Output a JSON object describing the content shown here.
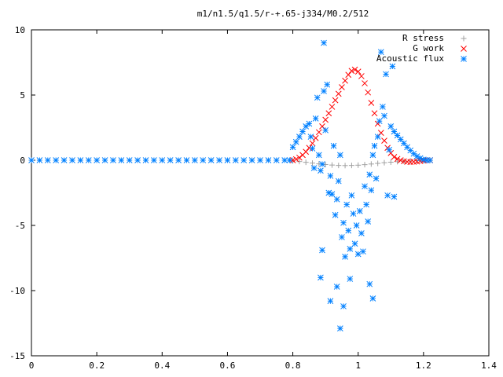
{
  "chart_data": {
    "type": "scatter",
    "title": "m1/n1.5/q1.5/r-+.65-j334/M0.2/512",
    "xlabel": "",
    "ylabel": "",
    "xlim": [
      0,
      1.4
    ],
    "ylim": [
      -15,
      10
    ],
    "x_ticks": [
      {
        "value": 0,
        "label": "0"
      },
      {
        "value": 0.2,
        "label": "0.2"
      },
      {
        "value": 0.4,
        "label": "0.4"
      },
      {
        "value": 0.6,
        "label": "0.6"
      },
      {
        "value": 0.8,
        "label": "0.8"
      },
      {
        "value": 1.0,
        "label": "1"
      },
      {
        "value": 1.2,
        "label": "1.2"
      },
      {
        "value": 1.4,
        "label": "1.4"
      }
    ],
    "y_ticks": [
      {
        "value": -15,
        "label": "-15"
      },
      {
        "value": -10,
        "label": "-10"
      },
      {
        "value": -5,
        "label": "-5"
      },
      {
        "value": 0,
        "label": "0"
      },
      {
        "value": 5,
        "label": "5"
      },
      {
        "value": 10,
        "label": "10"
      }
    ],
    "grid": false,
    "legend": "top-right",
    "series": [
      {
        "name": "R stress",
        "color": "#a0a0a0",
        "marker": "plus",
        "points": [
          [
            0.8,
            -0.05
          ],
          [
            0.82,
            -0.1
          ],
          [
            0.84,
            -0.16
          ],
          [
            0.86,
            -0.22
          ],
          [
            0.88,
            -0.28
          ],
          [
            0.9,
            -0.33
          ],
          [
            0.92,
            -0.37
          ],
          [
            0.94,
            -0.4
          ],
          [
            0.96,
            -0.41
          ],
          [
            0.98,
            -0.4
          ],
          [
            1.0,
            -0.38
          ],
          [
            1.02,
            -0.34
          ],
          [
            1.04,
            -0.29
          ],
          [
            1.06,
            -0.24
          ],
          [
            1.08,
            -0.19
          ],
          [
            1.1,
            -0.15
          ],
          [
            1.12,
            -0.11
          ],
          [
            1.14,
            -0.08
          ],
          [
            1.16,
            -0.06
          ],
          [
            1.18,
            -0.04
          ],
          [
            1.2,
            -0.02
          ],
          [
            1.22,
            -0.01
          ]
        ]
      },
      {
        "name": "G work",
        "color": "#ff0000",
        "marker": "cross",
        "points": [
          [
            0.8,
            0.0
          ],
          [
            0.81,
            0.08
          ],
          [
            0.82,
            0.2
          ],
          [
            0.83,
            0.4
          ],
          [
            0.84,
            0.65
          ],
          [
            0.85,
            0.95
          ],
          [
            0.86,
            1.3
          ],
          [
            0.87,
            1.7
          ],
          [
            0.88,
            2.15
          ],
          [
            0.89,
            2.6
          ],
          [
            0.9,
            3.1
          ],
          [
            0.91,
            3.6
          ],
          [
            0.92,
            4.1
          ],
          [
            0.93,
            4.6
          ],
          [
            0.94,
            5.1
          ],
          [
            0.95,
            5.6
          ],
          [
            0.96,
            6.1
          ],
          [
            0.97,
            6.55
          ],
          [
            0.98,
            6.85
          ],
          [
            0.99,
            6.95
          ],
          [
            1.0,
            6.8
          ],
          [
            1.01,
            6.45
          ],
          [
            1.02,
            5.9
          ],
          [
            1.03,
            5.2
          ],
          [
            1.04,
            4.4
          ],
          [
            1.05,
            3.6
          ],
          [
            1.06,
            2.8
          ],
          [
            1.07,
            2.1
          ],
          [
            1.08,
            1.5
          ],
          [
            1.09,
            0.95
          ],
          [
            1.1,
            0.55
          ],
          [
            1.11,
            0.25
          ],
          [
            1.12,
            0.1
          ],
          [
            1.13,
            0.0
          ],
          [
            1.14,
            -0.08
          ],
          [
            1.15,
            -0.12
          ],
          [
            1.16,
            -0.14
          ],
          [
            1.17,
            -0.12
          ],
          [
            1.18,
            -0.1
          ],
          [
            1.19,
            -0.06
          ],
          [
            1.2,
            -0.03
          ],
          [
            1.21,
            0.0
          ],
          [
            1.22,
            0.0
          ]
        ]
      },
      {
        "name": "Acoustic flux",
        "color": "#0080ff",
        "marker": "star",
        "points": [
          [
            0.0,
            0.0
          ],
          [
            0.025,
            0.0
          ],
          [
            0.05,
            0.0
          ],
          [
            0.075,
            0.0
          ],
          [
            0.1,
            0.0
          ],
          [
            0.125,
            0.0
          ],
          [
            0.15,
            0.0
          ],
          [
            0.175,
            0.0
          ],
          [
            0.2,
            0.0
          ],
          [
            0.225,
            0.0
          ],
          [
            0.25,
            0.0
          ],
          [
            0.275,
            0.0
          ],
          [
            0.3,
            0.0
          ],
          [
            0.325,
            0.0
          ],
          [
            0.35,
            0.0
          ],
          [
            0.375,
            0.0
          ],
          [
            0.4,
            0.0
          ],
          [
            0.425,
            0.0
          ],
          [
            0.45,
            0.0
          ],
          [
            0.475,
            0.0
          ],
          [
            0.5,
            0.0
          ],
          [
            0.525,
            0.0
          ],
          [
            0.55,
            0.0
          ],
          [
            0.575,
            0.0
          ],
          [
            0.6,
            0.0
          ],
          [
            0.625,
            0.0
          ],
          [
            0.65,
            0.0
          ],
          [
            0.675,
            0.0
          ],
          [
            0.7,
            0.0
          ],
          [
            0.725,
            0.0
          ],
          [
            0.75,
            0.0
          ],
          [
            0.775,
            0.0
          ],
          [
            0.79,
            0.0
          ],
          [
            0.8,
            1.0
          ],
          [
            0.81,
            1.4
          ],
          [
            0.82,
            1.8
          ],
          [
            0.83,
            2.2
          ],
          [
            0.84,
            2.6
          ],
          [
            0.85,
            2.8
          ],
          [
            0.855,
            1.8
          ],
          [
            0.86,
            0.9
          ],
          [
            0.865,
            -0.6
          ],
          [
            0.87,
            3.2
          ],
          [
            0.875,
            4.8
          ],
          [
            0.88,
            0.4
          ],
          [
            0.885,
            -0.8
          ],
          [
            0.89,
            -0.3
          ],
          [
            0.895,
            5.3
          ],
          [
            0.9,
            2.3
          ],
          [
            0.905,
            5.8
          ],
          [
            0.91,
            -2.5
          ],
          [
            0.915,
            -1.2
          ],
          [
            0.92,
            -2.6
          ],
          [
            0.925,
            1.1
          ],
          [
            0.93,
            -4.2
          ],
          [
            0.935,
            -3.0
          ],
          [
            0.94,
            -1.6
          ],
          [
            0.945,
            0.4
          ],
          [
            0.95,
            -5.9
          ],
          [
            0.955,
            -4.8
          ],
          [
            0.96,
            -7.4
          ],
          [
            0.965,
            -3.4
          ],
          [
            0.97,
            -5.4
          ],
          [
            0.975,
            -6.8
          ],
          [
            0.98,
            -2.7
          ],
          [
            0.985,
            -4.1
          ],
          [
            0.99,
            -6.4
          ],
          [
            0.995,
            -5.0
          ],
          [
            1.0,
            -7.2
          ],
          [
            1.005,
            -3.9
          ],
          [
            1.01,
            -5.6
          ],
          [
            1.015,
            -7.0
          ],
          [
            1.02,
            -2.0
          ],
          [
            1.025,
            -3.4
          ],
          [
            1.03,
            -4.7
          ],
          [
            1.035,
            -1.1
          ],
          [
            1.04,
            -2.3
          ],
          [
            1.045,
            0.4
          ],
          [
            1.05,
            1.1
          ],
          [
            1.055,
            -1.4
          ],
          [
            1.06,
            1.8
          ],
          [
            1.065,
            3.0
          ],
          [
            1.07,
            8.3
          ],
          [
            1.075,
            4.1
          ],
          [
            1.08,
            3.4
          ],
          [
            1.085,
            6.6
          ],
          [
            1.09,
            -2.7
          ],
          [
            1.095,
            0.8
          ],
          [
            1.1,
            2.6
          ],
          [
            1.11,
            2.2
          ],
          [
            1.12,
            1.9
          ],
          [
            1.13,
            1.6
          ],
          [
            1.14,
            1.3
          ],
          [
            1.15,
            1.0
          ],
          [
            1.16,
            0.75
          ],
          [
            1.17,
            0.5
          ],
          [
            1.18,
            0.3
          ],
          [
            1.19,
            0.15
          ],
          [
            1.2,
            0.05
          ],
          [
            1.21,
            0.0
          ],
          [
            1.22,
            0.0
          ],
          [
            0.895,
            9.0
          ],
          [
            0.89,
            -6.9
          ],
          [
            0.885,
            -9.0
          ],
          [
            0.915,
            -10.8
          ],
          [
            0.945,
            -12.9
          ],
          [
            0.955,
            -11.2
          ],
          [
            0.935,
            -9.7
          ],
          [
            0.975,
            -9.1
          ],
          [
            1.035,
            -9.5
          ],
          [
            1.045,
            -10.6
          ],
          [
            1.105,
            7.2
          ],
          [
            1.11,
            -2.8
          ]
        ]
      }
    ]
  }
}
